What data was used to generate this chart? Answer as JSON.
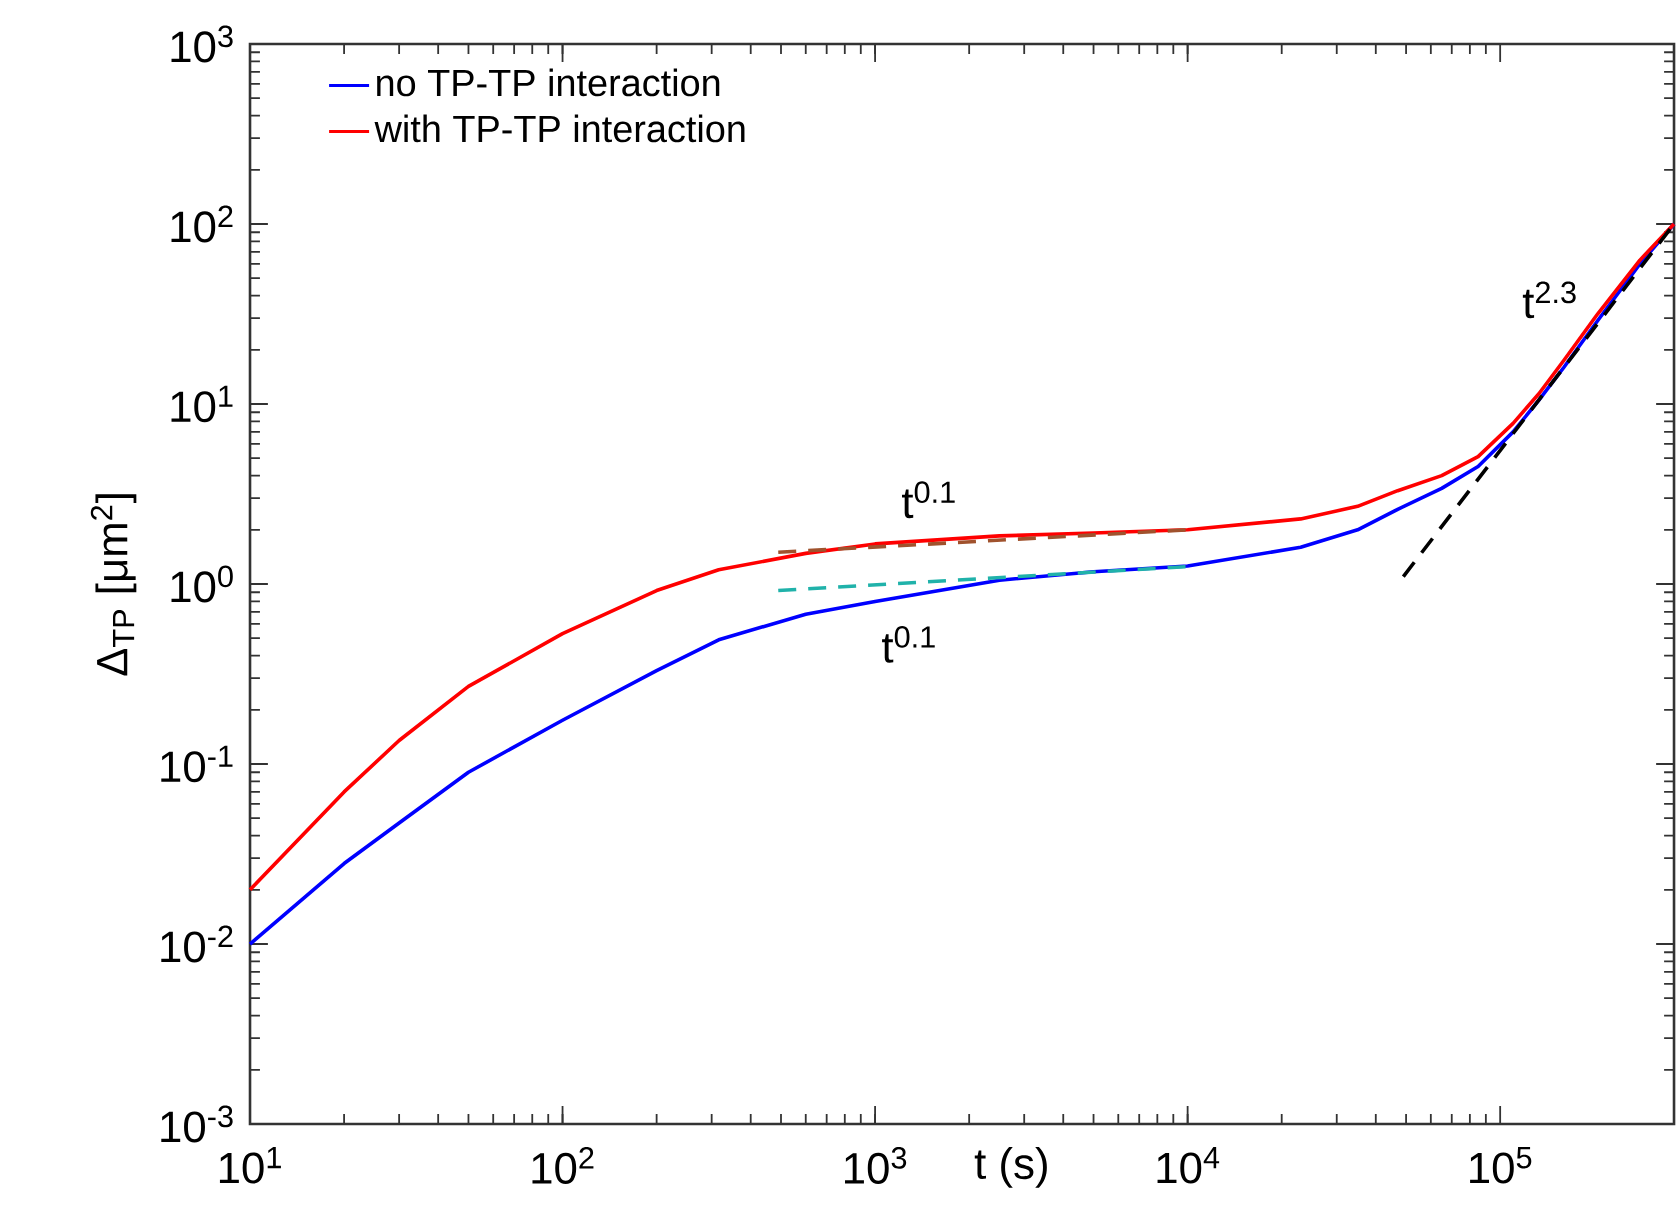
{
  "chart_data": {
    "type": "line",
    "xlabel": "t (s)",
    "ylabel": "Δ$_{TP}$ [μm$^{2}$]",
    "log": "xy",
    "legend": "top left",
    "marker": "none",
    "xlim": [
      10,
      360000
    ],
    "ylim": [
      0.001,
      1000
    ],
    "xticks": [
      {
        "value": 10,
        "label": "10$^{1}$"
      },
      {
        "value": 100,
        "label": "10$^{2}$"
      },
      {
        "value": 1000,
        "label": "10$^{3}$"
      },
      {
        "value": 10000,
        "label": "10$^{4}$"
      },
      {
        "value": 100000,
        "label": "10$^{5}$"
      }
    ],
    "yticks": [
      {
        "value": 0.001,
        "label": "10$^{-3}$"
      },
      {
        "value": 0.01,
        "label": "10$^{-2}$"
      },
      {
        "value": 0.1,
        "label": "10$^{-1}$"
      },
      {
        "value": 1,
        "label": "10$^{0}$"
      },
      {
        "value": 10,
        "label": "10$^{1}$"
      },
      {
        "value": 100,
        "label": "10$^{2}$"
      },
      {
        "value": 1000,
        "label": "10$^{3}$"
      }
    ],
    "series": [
      {
        "name": "no TP-TP interaction",
        "color": "#0000ff",
        "line_style": "solid",
        "x": [
          10,
          20,
          30,
          50,
          100,
          200,
          316,
          600,
          1000,
          2500,
          5000,
          10000,
          23000,
          35000,
          47000,
          65000,
          85000,
          110000,
          133000,
          160000,
          205000,
          280000,
          360000
        ],
        "values": [
          0.01,
          0.028,
          0.047,
          0.09,
          0.175,
          0.33,
          0.49,
          0.68,
          0.8,
          1.05,
          1.17,
          1.26,
          1.6,
          2.0,
          2.6,
          3.4,
          4.5,
          7.0,
          10.5,
          16,
          29,
          60,
          100
        ]
      },
      {
        "name": "with TP-TP interaction",
        "color": "#ff0000",
        "line_style": "solid",
        "x": [
          10,
          20,
          30,
          50,
          100,
          200,
          316,
          600,
          1000,
          2500,
          5000,
          10000,
          23000,
          35000,
          47000,
          65000,
          85000,
          110000,
          133000,
          160000,
          205000,
          280000,
          360000
        ],
        "values": [
          0.02,
          0.07,
          0.135,
          0.27,
          0.53,
          0.92,
          1.2,
          1.48,
          1.67,
          1.85,
          1.92,
          2.0,
          2.3,
          2.7,
          3.3,
          4.0,
          5.1,
          7.8,
          11.4,
          17.5,
          31.6,
          63,
          100
        ]
      },
      {
        "type": "line",
        "color": "#a0522d",
        "line_style": "dashed",
        "x": [
          490,
          10000
        ],
        "values": [
          1.5,
          2.0
        ]
      },
      {
        "type": "line",
        "color": "#20b2aa",
        "line_style": "dashed",
        "x": [
          490,
          10000
        ],
        "values": [
          0.92,
          1.25
        ]
      },
      {
        "type": "line",
        "color": "#000000",
        "line_style": "dashed",
        "x": [
          49000,
          360000
        ],
        "values": [
          1.1,
          100
        ]
      }
    ],
    "annotations": [
      "t$^{0.1}$",
      "t$^{0.1}$",
      "t$^{2.3}$"
    ]
  }
}
